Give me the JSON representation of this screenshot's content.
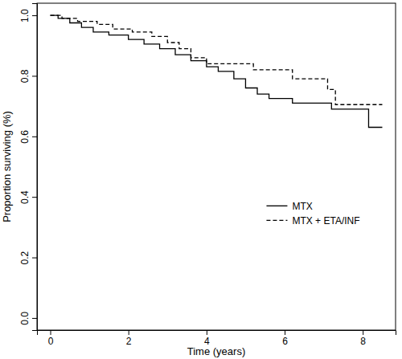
{
  "chart_data": {
    "type": "step",
    "x_label": "Time (years)",
    "y_label": "Proportion surviving (%)",
    "xlim": [
      -0.34,
      8.84
    ],
    "ylim": [
      -0.04,
      1.04
    ],
    "xticks": [
      0,
      2,
      4,
      6,
      8
    ],
    "yticks": [
      {
        "value": 0,
        "label": "0.0"
      },
      {
        "value": 0.2,
        "label": "0.2"
      },
      {
        "value": 0.4,
        "label": "0.4"
      },
      {
        "value": 0.6,
        "label": "0.6"
      },
      {
        "value": 0.8,
        "label": "0.8"
      },
      {
        "value": 1,
        "label": "1.0"
      }
    ],
    "grid": false,
    "legend": "right",
    "series": [
      {
        "name": "MTX",
        "color": "#000000",
        "line_style": "solid",
        "x": [
          0,
          0.2,
          0.5,
          0.8,
          1.1,
          1.5,
          2.0,
          2.4,
          2.8,
          3.2,
          3.6,
          4.0,
          4.3,
          4.7,
          5.0,
          5.3,
          5.6,
          6.2,
          7.2,
          8.15,
          8.5
        ],
        "values": [
          1.0,
          0.99,
          0.975,
          0.96,
          0.945,
          0.935,
          0.92,
          0.905,
          0.89,
          0.87,
          0.85,
          0.83,
          0.815,
          0.79,
          0.76,
          0.74,
          0.725,
          0.71,
          0.69,
          0.63,
          0.63
        ]
      },
      {
        "name": "MTX + ETA/INF",
        "color": "#000000",
        "line_style": "dashed",
        "x": [
          0,
          0.3,
          0.7,
          1.2,
          1.6,
          2.1,
          2.6,
          3.0,
          3.3,
          3.6,
          4.0,
          4.4,
          5.2,
          6.2,
          7.1,
          7.3,
          8.5
        ],
        "values": [
          1.0,
          0.99,
          0.98,
          0.97,
          0.955,
          0.945,
          0.93,
          0.91,
          0.89,
          0.86,
          0.84,
          0.84,
          0.82,
          0.79,
          0.755,
          0.705,
          0.705
        ]
      }
    ]
  }
}
